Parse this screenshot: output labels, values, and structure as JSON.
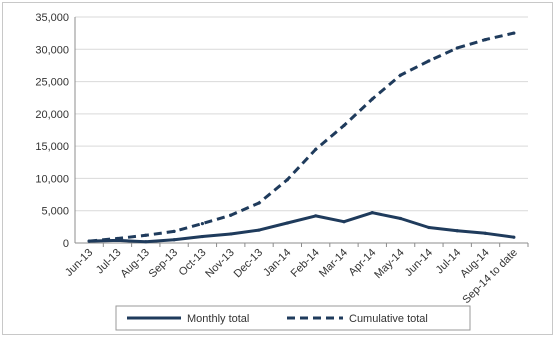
{
  "chart_data": {
    "type": "line",
    "categories": [
      "Jun-13",
      "Jul-13",
      "Aug-13",
      "Sep-13",
      "Oct-13",
      "Nov-13",
      "Dec-13",
      "Jan-14",
      "Feb-14",
      "Mar-14",
      "Apr-14",
      "May-14",
      "Jun-14",
      "Jul-14",
      "Aug-14",
      "Sep-14 to date"
    ],
    "series": [
      {
        "name": "Monthly total",
        "style": "solid",
        "color": "#1f3b5c",
        "values": [
          300,
          400,
          200,
          500,
          1000,
          1400,
          2000,
          3100,
          4200,
          3300,
          4700,
          3800,
          2400,
          1900,
          1500,
          900
        ]
      },
      {
        "name": "Cumulative total",
        "style": "dashed",
        "color": "#1f3b5c",
        "values": [
          300,
          700,
          1200,
          1800,
          3000,
          4300,
          6200,
          9800,
          14500,
          18200,
          22300,
          26000,
          28200,
          30200,
          31500,
          32500
        ]
      }
    ],
    "y_ticks": [
      "0",
      "5,000",
      "10,000",
      "15,000",
      "20,000",
      "25,000",
      "30,000",
      "35,000"
    ],
    "ylim": [
      0,
      35000
    ],
    "grid": true,
    "legend_position": "bottom"
  }
}
